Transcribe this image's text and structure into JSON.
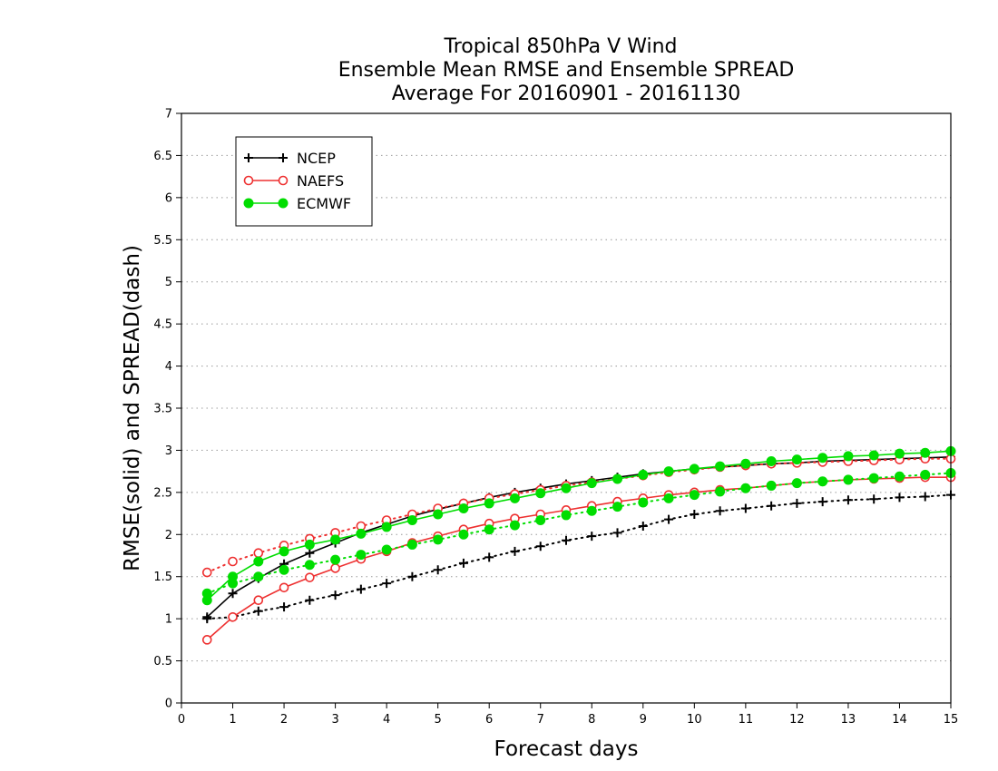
{
  "chart_data": {
    "type": "line",
    "title_lines": [
      "Tropical 850hPa V Wind",
      "Ensemble Mean RMSE and Ensemble SPREAD",
      "Average For 20160901 - 20161130"
    ],
    "xlabel": "Forecast days",
    "ylabel": "RMSE(solid) and SPREAD(dash)",
    "xlim": [
      0,
      15
    ],
    "ylim": [
      0,
      7
    ],
    "xticks": [
      "0",
      "1",
      "2",
      "3",
      "4",
      "5",
      "6",
      "7",
      "8",
      "9",
      "10",
      "11",
      "12",
      "13",
      "14",
      "15"
    ],
    "yticks": [
      "0",
      "0.5",
      "1",
      "1.5",
      "2",
      "2.5",
      "3",
      "3.5",
      "4",
      "4.5",
      "5",
      "5.5",
      "6",
      "6.5",
      "7"
    ],
    "grid": "horizontal dotted",
    "legend_position": "top-left",
    "x": [
      0.5,
      1,
      1.5,
      2,
      2.5,
      3,
      3.5,
      4,
      4.5,
      5,
      5.5,
      6,
      6.5,
      7,
      7.5,
      8,
      8.5,
      9,
      9.5,
      10,
      10.5,
      11,
      11.5,
      12,
      12.5,
      13,
      13.5,
      14,
      14.5,
      15
    ],
    "series": [
      {
        "name": "NCEP",
        "color": "#000000",
        "marker": "plus",
        "rmse": [
          1.02,
          1.3,
          1.48,
          1.65,
          1.78,
          1.9,
          2.02,
          2.12,
          2.22,
          2.3,
          2.37,
          2.44,
          2.5,
          2.55,
          2.6,
          2.64,
          2.68,
          2.72,
          2.75,
          2.78,
          2.8,
          2.82,
          2.84,
          2.85,
          2.87,
          2.88,
          2.89,
          2.9,
          2.91,
          2.92
        ],
        "spread": [
          1.0,
          1.02,
          1.09,
          1.14,
          1.22,
          1.28,
          1.35,
          1.42,
          1.5,
          1.58,
          1.66,
          1.73,
          1.8,
          1.86,
          1.93,
          1.98,
          2.02,
          2.1,
          2.18,
          2.24,
          2.28,
          2.31,
          2.34,
          2.37,
          2.39,
          2.41,
          2.42,
          2.44,
          2.45,
          2.47
        ]
      },
      {
        "name": "NAEFS",
        "color": "#ee3030",
        "marker": "open-circle",
        "rmse": [
          0.75,
          1.02,
          1.22,
          1.37,
          1.49,
          1.6,
          1.71,
          1.8,
          1.9,
          1.98,
          2.06,
          2.13,
          2.19,
          2.24,
          2.29,
          2.34,
          2.39,
          2.43,
          2.47,
          2.5,
          2.53,
          2.55,
          2.58,
          2.61,
          2.63,
          2.65,
          2.66,
          2.67,
          2.68,
          2.68
        ],
        "spread": [
          1.55,
          1.68,
          1.78,
          1.87,
          1.95,
          2.02,
          2.1,
          2.17,
          2.24,
          2.31,
          2.37,
          2.43,
          2.48,
          2.53,
          2.58,
          2.62,
          2.66,
          2.7,
          2.74,
          2.77,
          2.8,
          2.82,
          2.84,
          2.85,
          2.86,
          2.87,
          2.88,
          2.89,
          2.9,
          2.9
        ]
      },
      {
        "name": "ECMWF",
        "color": "#00dd00",
        "marker": "filled-circle",
        "rmse": [
          1.22,
          1.5,
          1.68,
          1.8,
          1.88,
          1.94,
          2.01,
          2.09,
          2.17,
          2.24,
          2.31,
          2.37,
          2.43,
          2.49,
          2.55,
          2.61,
          2.66,
          2.71,
          2.75,
          2.78,
          2.81,
          2.84,
          2.87,
          2.89,
          2.91,
          2.93,
          2.94,
          2.96,
          2.97,
          2.99
        ],
        "spread": [
          1.3,
          1.42,
          1.5,
          1.58,
          1.64,
          1.7,
          1.76,
          1.82,
          1.88,
          1.94,
          2.0,
          2.06,
          2.11,
          2.17,
          2.23,
          2.28,
          2.33,
          2.38,
          2.43,
          2.47,
          2.51,
          2.55,
          2.58,
          2.61,
          2.63,
          2.65,
          2.67,
          2.69,
          2.71,
          2.73
        ]
      }
    ]
  }
}
